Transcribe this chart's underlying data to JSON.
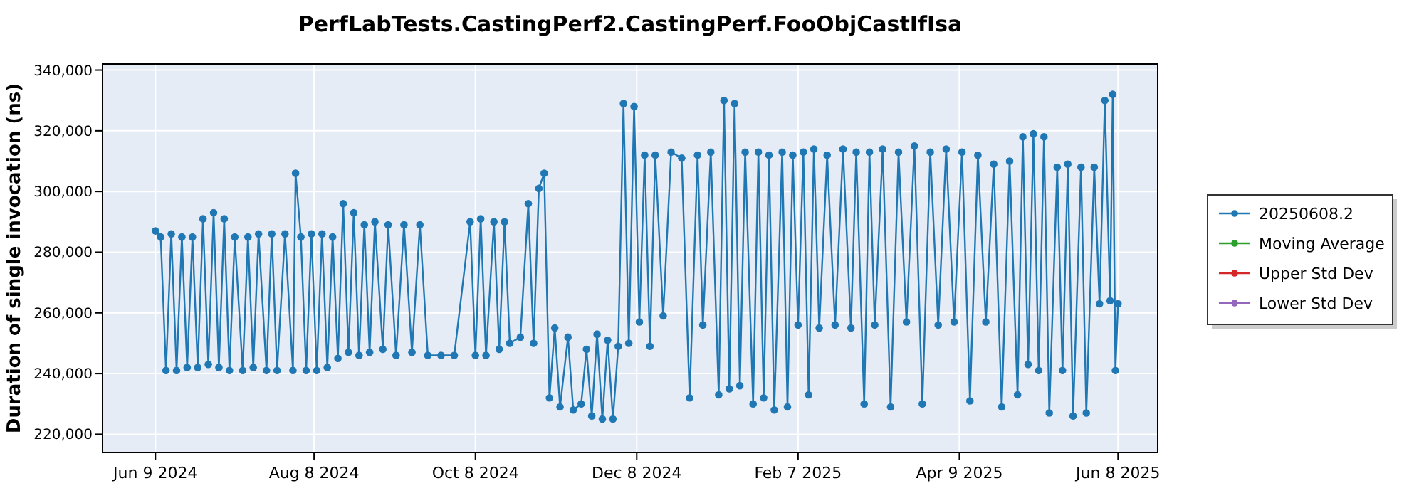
{
  "chart_data": {
    "type": "line",
    "title": "PerfLabTests.CastingPerf2.CastingPerf.FooObjCastIfIsa",
    "ylabel": "Duration of single invocation (ns)",
    "marker": "circle",
    "grid": true,
    "legend": "right",
    "xlim": [
      "2024-05-20",
      "2025-06-23"
    ],
    "xticks": [
      {
        "value": "2024-06-09",
        "label": "Jun 9 2024"
      },
      {
        "value": "2024-08-08",
        "label": "Aug 8 2024"
      },
      {
        "value": "2024-10-08",
        "label": "Oct 8 2024"
      },
      {
        "value": "2024-12-08",
        "label": "Dec 8 2024"
      },
      {
        "value": "2025-02-07",
        "label": "Feb 7 2025"
      },
      {
        "value": "2025-04-09",
        "label": "Apr 9 2025"
      },
      {
        "value": "2025-06-08",
        "label": "Jun 8 2025"
      }
    ],
    "ylim": [
      214000,
      342000
    ],
    "yticks": [
      {
        "value": 220000,
        "label": "220,000"
      },
      {
        "value": 240000,
        "label": "240,000"
      },
      {
        "value": 260000,
        "label": "260,000"
      },
      {
        "value": 280000,
        "label": "280,000"
      },
      {
        "value": 300000,
        "label": "300,000"
      },
      {
        "value": 320000,
        "label": "320,000"
      },
      {
        "value": 340000,
        "label": "340,000"
      }
    ],
    "x": [
      "2024-06-09",
      "2024-06-11",
      "2024-06-13",
      "2024-06-15",
      "2024-06-17",
      "2024-06-19",
      "2024-06-21",
      "2024-06-23",
      "2024-06-25",
      "2024-06-27",
      "2024-06-29",
      "2024-07-01",
      "2024-07-03",
      "2024-07-05",
      "2024-07-07",
      "2024-07-09",
      "2024-07-12",
      "2024-07-14",
      "2024-07-16",
      "2024-07-18",
      "2024-07-21",
      "2024-07-23",
      "2024-07-25",
      "2024-07-28",
      "2024-07-31",
      "2024-08-01",
      "2024-08-03",
      "2024-08-05",
      "2024-08-07",
      "2024-08-09",
      "2024-08-11",
      "2024-08-13",
      "2024-08-15",
      "2024-08-17",
      "2024-08-19",
      "2024-08-21",
      "2024-08-23",
      "2024-08-25",
      "2024-08-27",
      "2024-08-29",
      "2024-08-31",
      "2024-09-03",
      "2024-09-05",
      "2024-09-08",
      "2024-09-11",
      "2024-09-14",
      "2024-09-17",
      "2024-09-20",
      "2024-09-25",
      "2024-09-30",
      "2024-10-06",
      "2024-10-08",
      "2024-10-10",
      "2024-10-12",
      "2024-10-15",
      "2024-10-17",
      "2024-10-19",
      "2024-10-21",
      "2024-10-25",
      "2024-10-28",
      "2024-10-30",
      "2024-11-01",
      "2024-11-03",
      "2024-11-05",
      "2024-11-07",
      "2024-11-09",
      "2024-11-12",
      "2024-11-14",
      "2024-11-17",
      "2024-11-19",
      "2024-11-21",
      "2024-11-23",
      "2024-11-25",
      "2024-11-27",
      "2024-11-29",
      "2024-12-01",
      "2024-12-03",
      "2024-12-05",
      "2024-12-07",
      "2024-12-09",
      "2024-12-11",
      "2024-12-13",
      "2024-12-15",
      "2024-12-18",
      "2024-12-21",
      "2024-12-25",
      "2024-12-28",
      "2024-12-31",
      "2025-01-02",
      "2025-01-05",
      "2025-01-08",
      "2025-01-10",
      "2025-01-12",
      "2025-01-14",
      "2025-01-16",
      "2025-01-18",
      "2025-01-21",
      "2025-01-23",
      "2025-01-25",
      "2025-01-27",
      "2025-01-29",
      "2025-02-01",
      "2025-02-03",
      "2025-02-05",
      "2025-02-07",
      "2025-02-09",
      "2025-02-11",
      "2025-02-13",
      "2025-02-15",
      "2025-02-18",
      "2025-02-21",
      "2025-02-24",
      "2025-02-27",
      "2025-03-01",
      "2025-03-04",
      "2025-03-06",
      "2025-03-08",
      "2025-03-11",
      "2025-03-14",
      "2025-03-17",
      "2025-03-20",
      "2025-03-23",
      "2025-03-26",
      "2025-03-29",
      "2025-04-01",
      "2025-04-04",
      "2025-04-07",
      "2025-04-10",
      "2025-04-13",
      "2025-04-16",
      "2025-04-19",
      "2025-04-22",
      "2025-04-25",
      "2025-04-28",
      "2025-05-01",
      "2025-05-03",
      "2025-05-05",
      "2025-05-07",
      "2025-05-09",
      "2025-05-11",
      "2025-05-13",
      "2025-05-16",
      "2025-05-18",
      "2025-05-20",
      "2025-05-22",
      "2025-05-25",
      "2025-05-27",
      "2025-05-30",
      "2025-06-01",
      "2025-06-03",
      "2025-06-05",
      "2025-06-06",
      "2025-06-07",
      "2025-06-08"
    ],
    "series": [
      {
        "name": "20250608.2",
        "color": "#1f77b4",
        "values": [
          287000,
          285000,
          241000,
          286000,
          241000,
          285000,
          242000,
          285000,
          242000,
          291000,
          243000,
          293000,
          242000,
          291000,
          241000,
          285000,
          241000,
          285000,
          242000,
          286000,
          241000,
          286000,
          241000,
          286000,
          241000,
          306000,
          285000,
          241000,
          286000,
          241000,
          286000,
          242000,
          285000,
          245000,
          296000,
          247000,
          293000,
          246000,
          289000,
          247000,
          290000,
          248000,
          289000,
          246000,
          289000,
          247000,
          289000,
          246000,
          246000,
          246000,
          290000,
          246000,
          291000,
          246000,
          290000,
          248000,
          290000,
          250000,
          252000,
          296000,
          250000,
          301000,
          306000,
          232000,
          255000,
          229000,
          252000,
          228000,
          230000,
          248000,
          226000,
          253000,
          225000,
          251000,
          225000,
          249000,
          329000,
          250000,
          328000,
          257000,
          312000,
          249000,
          312000,
          259000,
          313000,
          311000,
          232000,
          312000,
          256000,
          313000,
          233000,
          330000,
          235000,
          329000,
          236000,
          313000,
          230000,
          313000,
          232000,
          312000,
          228000,
          313000,
          229000,
          312000,
          256000,
          313000,
          233000,
          314000,
          255000,
          312000,
          256000,
          314000,
          255000,
          313000,
          230000,
          313000,
          256000,
          314000,
          229000,
          313000,
          257000,
          315000,
          230000,
          313000,
          256000,
          314000,
          257000,
          313000,
          231000,
          312000,
          257000,
          309000,
          229000,
          310000,
          233000,
          318000,
          243000,
          319000,
          241000,
          318000,
          227000,
          308000,
          241000,
          309000,
          226000,
          308000,
          227000,
          308000,
          263000,
          330000,
          264000,
          332000,
          241000,
          263000
        ]
      },
      {
        "name": "Moving Average",
        "color": "#2ca02c",
        "values": [
          null,
          null,
          null,
          null,
          null,
          null,
          null,
          null,
          null,
          null,
          null,
          null,
          null,
          null,
          null,
          null,
          null,
          null,
          null,
          null,
          null,
          null,
          null,
          null,
          null,
          null,
          null,
          null,
          null,
          null,
          null,
          null,
          null,
          null,
          null,
          null,
          null,
          null,
          null,
          null,
          null,
          null,
          null,
          null,
          null,
          null,
          null,
          null,
          null,
          null,
          null,
          null,
          null,
          null,
          null,
          null,
          null,
          null,
          null,
          null,
          null,
          null,
          null,
          null,
          null,
          null,
          null,
          null,
          null,
          null,
          null,
          null,
          null,
          null,
          null,
          null,
          null,
          null,
          null,
          null,
          null,
          null,
          null,
          null,
          null,
          null,
          null,
          null,
          null,
          null,
          null,
          null,
          null,
          null,
          null,
          null,
          null,
          null,
          null,
          null,
          null,
          null,
          null,
          null,
          null,
          null,
          null,
          null,
          null,
          null,
          null,
          null,
          null,
          null,
          null,
          null,
          null,
          null,
          null,
          null,
          null,
          null,
          null,
          null,
          null,
          null,
          null,
          null,
          null,
          null,
          null,
          null,
          null,
          null,
          null,
          null,
          null,
          null,
          null,
          null,
          null,
          null,
          null,
          null,
          null,
          null,
          null,
          null,
          null,
          null,
          null,
          null,
          null,
          null
        ]
      },
      {
        "name": "Upper Std Dev",
        "color": "#d62728",
        "values": [
          null,
          null,
          null,
          null,
          null,
          null,
          null,
          null,
          null,
          null,
          null,
          null,
          null,
          null,
          null,
          null,
          null,
          null,
          null,
          null,
          null,
          null,
          null,
          null,
          null,
          null,
          null,
          null,
          null,
          null,
          null,
          null,
          null,
          null,
          null,
          null,
          null,
          null,
          null,
          null,
          null,
          null,
          null,
          null,
          null,
          null,
          null,
          null,
          null,
          null,
          null,
          null,
          null,
          null,
          null,
          null,
          null,
          null,
          null,
          null,
          null,
          null,
          null,
          null,
          null,
          null,
          null,
          null,
          null,
          null,
          null,
          null,
          null,
          null,
          null,
          null,
          null,
          null,
          null,
          null,
          null,
          null,
          null,
          null,
          null,
          null,
          null,
          null,
          null,
          null,
          null,
          null,
          null,
          null,
          null,
          null,
          null,
          null,
          null,
          null,
          null,
          null,
          null,
          null,
          null,
          null,
          null,
          null,
          null,
          null,
          null,
          null,
          null,
          null,
          null,
          null,
          null,
          null,
          null,
          null,
          null,
          null,
          null,
          null,
          null,
          null,
          null,
          null,
          null,
          null,
          null,
          null,
          null,
          null,
          null,
          null,
          null,
          null,
          null,
          null,
          null,
          null,
          null,
          null,
          null,
          null,
          null,
          null,
          null,
          null,
          null,
          null,
          null,
          null
        ]
      },
      {
        "name": "Lower Std Dev",
        "color": "#9467bd",
        "values": [
          null,
          null,
          null,
          null,
          null,
          null,
          null,
          null,
          null,
          null,
          null,
          null,
          null,
          null,
          null,
          null,
          null,
          null,
          null,
          null,
          null,
          null,
          null,
          null,
          null,
          null,
          null,
          null,
          null,
          null,
          null,
          null,
          null,
          null,
          null,
          null,
          null,
          null,
          null,
          null,
          null,
          null,
          null,
          null,
          null,
          null,
          null,
          null,
          null,
          null,
          null,
          null,
          null,
          null,
          null,
          null,
          null,
          null,
          null,
          null,
          null,
          null,
          null,
          null,
          null,
          null,
          null,
          null,
          null,
          null,
          null,
          null,
          null,
          null,
          null,
          null,
          null,
          null,
          null,
          null,
          null,
          null,
          null,
          null,
          null,
          null,
          null,
          null,
          null,
          null,
          null,
          null,
          null,
          null,
          null,
          null,
          null,
          null,
          null,
          null,
          null,
          null,
          null,
          null,
          null,
          null,
          null,
          null,
          null,
          null,
          null,
          null,
          null,
          null,
          null,
          null,
          null,
          null,
          null,
          null,
          null,
          null,
          null,
          null,
          null,
          null,
          null,
          null,
          null,
          null,
          null,
          null,
          null,
          null,
          null,
          null,
          null,
          null,
          null,
          null,
          null,
          null,
          null,
          null,
          null,
          null,
          null,
          null,
          null,
          null,
          null,
          null,
          null,
          null
        ]
      }
    ]
  }
}
